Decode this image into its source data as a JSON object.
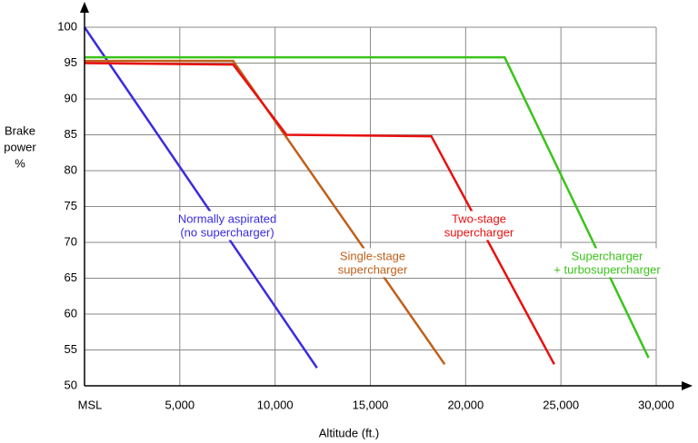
{
  "chart_data": {
    "type": "line",
    "ylabel": [
      "Brake",
      "power",
      "%"
    ],
    "xlabel": "Altitude (ft.)",
    "xlim": [
      0,
      30000
    ],
    "xticks": [
      {
        "value": 0,
        "label": "MSL"
      },
      {
        "value": 5000,
        "label": "5,000"
      },
      {
        "value": 10000,
        "label": "10,000"
      },
      {
        "value": 15000,
        "label": "15,000"
      },
      {
        "value": 20000,
        "label": "20,000"
      },
      {
        "value": 25000,
        "label": "25,000"
      },
      {
        "value": 30000,
        "label": "30,000"
      }
    ],
    "ylim": [
      50,
      100
    ],
    "yticks": [
      50,
      55,
      60,
      65,
      70,
      75,
      80,
      85,
      90,
      95,
      100
    ],
    "grid": true,
    "series": [
      {
        "label": [
          "Normally aspirated",
          "(no supercharger)"
        ],
        "color": "#3a2be0",
        "x": [
          0,
          12200
        ],
        "values": [
          100,
          52.5
        ]
      },
      {
        "label": [
          "Single-stage",
          "supercharger"
        ],
        "color": "#c0601a",
        "x": [
          0,
          7800,
          18900
        ],
        "values": [
          95.3,
          95.3,
          53
        ]
      },
      {
        "label": [
          "Two-stage",
          "supercharger"
        ],
        "color": "#e81010",
        "x": [
          0,
          7800,
          10600,
          18200,
          24650
        ],
        "values": [
          95,
          94.8,
          85,
          84.8,
          53
        ]
      },
      {
        "label": [
          "Supercharger",
          "+ turbosupercharger"
        ],
        "color": "#3ac41a",
        "x": [
          0,
          22050,
          29600
        ],
        "values": [
          95.8,
          95.8,
          53.9
        ]
      }
    ]
  }
}
